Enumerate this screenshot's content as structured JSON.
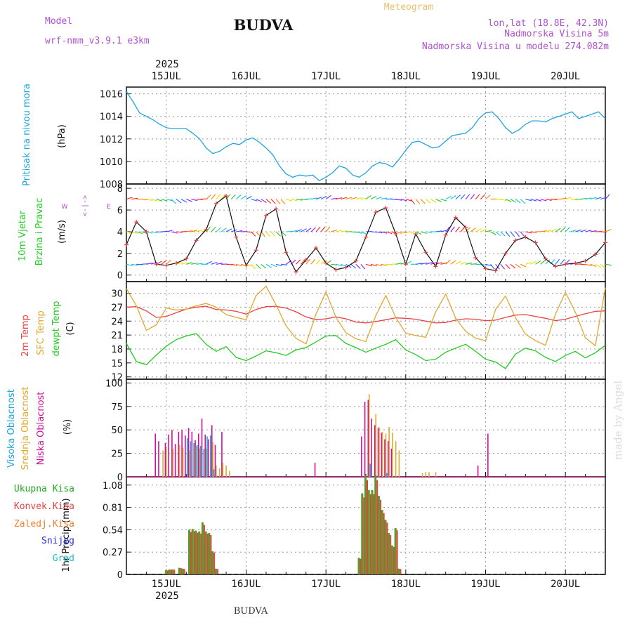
{
  "header": {
    "model_label": "Model",
    "model_name": "wrf-nmm_v3.9.1  e3km",
    "title": "BUDVA",
    "meteogram_label": "Meteogram",
    "lonlat": "lon,lat (18.8E, 42.3N)",
    "elevation": "Nadmorska Visina 5m",
    "model_elevation": "Nadmorska Visina u modelu 274.082m",
    "year_top": "2025",
    "year_bottom": "2025",
    "footer_station": "BUDVA",
    "watermark": "made by Angel"
  },
  "colors": {
    "pressure": "#1fa3e0",
    "temp": "#e84040",
    "sfc": "#e0a830",
    "dew": "#22cc22",
    "high": "#1fa3e0",
    "mid": "#e0a830",
    "low": "#cc1199",
    "total": "#22aa22",
    "conv": "#e84040",
    "frz": "#f08030",
    "snow": "#3030dd",
    "grad": "#20c0c0",
    "wind": "#111111",
    "header": "#b050d0",
    "meteo": "#e8c070"
  },
  "chart_data": [
    {
      "panel": "pressure",
      "type": "line",
      "title": "Pritisak na nivou mora",
      "ylabel": "(hPa)",
      "ylim": [
        1008,
        1016.6
      ],
      "yticks": [
        1008,
        1010,
        1012,
        1014,
        1016
      ],
      "xlim": [
        0,
        144
      ],
      "x": [
        0,
        2,
        4,
        6,
        8,
        10,
        12,
        14,
        16,
        18,
        20,
        22,
        24,
        26,
        28,
        30,
        32,
        34,
        36,
        38,
        40,
        42,
        44,
        46,
        48,
        50,
        52,
        54,
        56,
        58,
        60,
        62,
        64,
        66,
        68,
        70,
        72,
        74,
        76,
        78,
        80,
        82,
        84,
        86,
        88,
        90,
        92,
        94,
        96,
        98,
        100,
        102,
        104,
        106,
        108,
        110,
        112,
        114,
        116,
        118,
        120,
        122,
        124,
        126,
        128,
        130,
        132,
        134,
        136,
        138,
        140,
        142,
        144
      ],
      "values": [
        1016.2,
        1015.3,
        1014.3,
        1014,
        1013.7,
        1013.3,
        1013,
        1012.9,
        1012.9,
        1012.9,
        1012.5,
        1012,
        1011.2,
        1010.7,
        1010.9,
        1011.3,
        1011.6,
        1011.5,
        1011.9,
        1012.1,
        1011.7,
        1011.2,
        1010.6,
        1009.6,
        1008.9,
        1008.6,
        1008.8,
        1008.7,
        1008.8,
        1008.3,
        1008.6,
        1009,
        1009.6,
        1009.4,
        1008.8,
        1008.6,
        1009,
        1009.6,
        1009.9,
        1009.8,
        1009.5,
        1010.2,
        1011,
        1011.7,
        1011.8,
        1011.5,
        1011.2,
        1011.3,
        1011.8,
        1012.3,
        1012.4,
        1012.5,
        1013,
        1013.8,
        1014.3,
        1014.4,
        1013.8,
        1013,
        1012.5,
        1012.8,
        1013.3,
        1013.6,
        1013.6,
        1013.5,
        1013.8,
        1014,
        1014.2,
        1014.4,
        1013.8,
        1014,
        1014.2,
        1014.4,
        1013.8
      ]
    },
    {
      "panel": "wind",
      "type": "line",
      "title": "10m Vjetar Brzina i Pravac",
      "ylabel": "(m/s)",
      "compass": "<-|->",
      "west": "W",
      "east": "E",
      "ylim": [
        -0.6,
        8.4
      ],
      "yticks": [
        0,
        2,
        4,
        6,
        8
      ],
      "xlim": [
        0,
        144
      ],
      "x": [
        0,
        3,
        6,
        9,
        12,
        15,
        18,
        21,
        24,
        27,
        30,
        33,
        36,
        39,
        42,
        45,
        48,
        51,
        54,
        57,
        60,
        63,
        66,
        69,
        72,
        75,
        78,
        81,
        84,
        87,
        90,
        93,
        96,
        99,
        102,
        105,
        108,
        111,
        114,
        117,
        120,
        123,
        126,
        129,
        132,
        135,
        138,
        141,
        144
      ],
      "values": [
        2.8,
        4.9,
        4,
        1,
        0.9,
        1.1,
        1.5,
        3.2,
        4.2,
        6.6,
        7.3,
        3.5,
        0.9,
        2.3,
        5.5,
        6.1,
        2.1,
        0.3,
        1.4,
        2.5,
        1.1,
        0.5,
        0.7,
        1.3,
        3.5,
        5.8,
        6.2,
        3.8,
        1,
        3.8,
        2.1,
        0.8,
        3.7,
        5.3,
        4.4,
        1.6,
        0.6,
        0.4,
        2,
        3.2,
        3.5,
        3,
        1.5,
        0.8,
        1,
        1.1,
        1.3,
        1.9,
        3
      ]
    },
    {
      "panel": "temperature",
      "type": "line",
      "title_lines": [
        "2m Temp",
        "SFC Temp",
        "dewpt Temp"
      ],
      "ylabel": "(C)",
      "ylim": [
        11.5,
        32.5
      ],
      "yticks": [
        12,
        15,
        18,
        21,
        24,
        27,
        30
      ],
      "xlim": [
        0,
        144
      ],
      "x": [
        0,
        3,
        6,
        9,
        12,
        15,
        18,
        21,
        24,
        27,
        30,
        33,
        36,
        39,
        42,
        45,
        48,
        51,
        54,
        57,
        60,
        63,
        66,
        69,
        72,
        75,
        78,
        81,
        84,
        87,
        90,
        93,
        96,
        99,
        102,
        105,
        108,
        111,
        114,
        117,
        120,
        123,
        126,
        129,
        132,
        135,
        138,
        141,
        144
      ],
      "series": [
        {
          "name": "2m Temp",
          "values": [
            27,
            27.1,
            26.2,
            24.8,
            25,
            25.8,
            26.6,
            27,
            27.2,
            26.5,
            26.4,
            26.1,
            25.5,
            26.5,
            27.1,
            27.2,
            26.8,
            26,
            24.9,
            24.3,
            24.5,
            24.9,
            24.5,
            23.8,
            23.6,
            23.9,
            24.3,
            24.7,
            24.6,
            24.4,
            24,
            23.6,
            23.7,
            24.2,
            24.5,
            24.4,
            24.1,
            24.2,
            24.8,
            25.3,
            25.4,
            25,
            24.6,
            24.1,
            24.4,
            25,
            25.6,
            26.1,
            26.2
          ]
        },
        {
          "name": "SFC Temp",
          "values": [
            31,
            27.3,
            22,
            23.2,
            26.8,
            26.4,
            26.6,
            27.3,
            27.8,
            27,
            25.4,
            24.8,
            24.3,
            29.5,
            31.5,
            27.5,
            23,
            20.3,
            19.1,
            25.5,
            30.3,
            24.8,
            21.5,
            20.2,
            19.6,
            25.2,
            29.5,
            24.8,
            21.4,
            20.9,
            20.5,
            26,
            29.8,
            24.6,
            21.8,
            20.3,
            19.8,
            26.5,
            29.4,
            24.7,
            21.2,
            19.8,
            18.8,
            25.5,
            30.2,
            25.9,
            20.4,
            18.7,
            31.2
          ]
        },
        {
          "name": "dewpt Temp",
          "values": [
            19.2,
            15.3,
            14.6,
            16.7,
            18.6,
            20,
            20.8,
            21.3,
            19,
            17.5,
            18.5,
            16.2,
            15.5,
            16.5,
            17.6,
            17.2,
            16.6,
            17.8,
            18.3,
            19.5,
            20.8,
            20.9,
            19.2,
            18.3,
            17.3,
            18.2,
            19,
            20,
            17.8,
            16.8,
            15.5,
            15.8,
            17.3,
            18.2,
            19,
            17.5,
            15.8,
            15.2,
            13.8,
            16.9,
            18.2,
            17.6,
            16.2,
            15.3,
            16.6,
            17.5,
            16.1,
            17.2,
            18.8
          ]
        }
      ]
    },
    {
      "panel": "clouds",
      "type": "bar",
      "title_lines": [
        "Visoka Oblacnost",
        "Srednja Oblacnost",
        "Niska Oblacnost"
      ],
      "ylabel": "(%)",
      "ylim": [
        0,
        104
      ],
      "yticks": [
        0,
        25,
        50,
        75,
        100
      ],
      "xlim": [
        0,
        144
      ],
      "series": [
        {
          "name": "Niska Oblacnost",
          "points": [
            [
              9,
              46
            ],
            [
              10,
              38
            ],
            [
              12,
              36
            ],
            [
              13,
              45
            ],
            [
              14,
              50
            ],
            [
              15,
              35
            ],
            [
              16,
              48
            ],
            [
              17,
              50
            ],
            [
              18,
              44
            ],
            [
              19,
              52
            ],
            [
              20,
              48
            ],
            [
              21,
              39
            ],
            [
              22,
              46
            ],
            [
              23,
              62
            ],
            [
              24,
              45
            ],
            [
              25,
              40
            ],
            [
              26,
              55
            ],
            [
              27,
              34
            ],
            [
              29,
              48
            ],
            [
              57,
              15
            ],
            [
              71,
              43
            ],
            [
              72,
              80
            ],
            [
              73,
              82
            ],
            [
              74,
              62
            ],
            [
              75,
              55
            ],
            [
              76,
              52
            ],
            [
              77,
              47
            ],
            [
              78,
              40
            ],
            [
              79,
              38
            ],
            [
              80,
              30
            ],
            [
              106,
              12
            ],
            [
              109,
              46
            ]
          ]
        },
        {
          "name": "Srednja Oblacnost",
          "points": [
            [
              11,
              28
            ],
            [
              12,
              32
            ],
            [
              14,
              30
            ],
            [
              16,
              34
            ],
            [
              17,
              31
            ],
            [
              19,
              28
            ],
            [
              21,
              33
            ],
            [
              22,
              30
            ],
            [
              24,
              30
            ],
            [
              26,
              37
            ],
            [
              27,
              12
            ],
            [
              28,
              9
            ],
            [
              29,
              15
            ],
            [
              30,
              12
            ],
            [
              31,
              6
            ],
            [
              73,
              88
            ],
            [
              75,
              67
            ],
            [
              76,
              53
            ],
            [
              77,
              48
            ],
            [
              78,
              46
            ],
            [
              79,
              53
            ],
            [
              80,
              47
            ],
            [
              81,
              38
            ],
            [
              82,
              28
            ],
            [
              89,
              4
            ],
            [
              90,
              5
            ],
            [
              91,
              5
            ],
            [
              93,
              5
            ]
          ]
        },
        {
          "name": "Visoka Oblacnost",
          "points": [
            [
              18,
              41
            ],
            [
              19,
              38
            ],
            [
              20,
              36
            ],
            [
              21,
              34
            ],
            [
              22,
              33
            ],
            [
              23,
              30
            ],
            [
              24,
              43
            ],
            [
              25,
              44
            ],
            [
              26,
              8
            ],
            [
              73,
              14
            ],
            [
              78,
              4
            ]
          ]
        }
      ]
    },
    {
      "panel": "precip",
      "type": "bar",
      "title": "1hr Precip",
      "ylabel": "(mm)",
      "legend": [
        "Ukupna Kisa",
        "Konvek.Kisa",
        "Zaledj.Kisa",
        "Snijeg",
        "Grad"
      ],
      "ylim": [
        0,
        1.18
      ],
      "yticks": [
        "0",
        "0.27",
        "0.54",
        "0.81",
        "1.08"
      ],
      "ytick_values": [
        0,
        0.27,
        0.54,
        0.81,
        1.08
      ],
      "xlim": [
        0,
        144
      ],
      "points": [
        [
          12,
          0.05
        ],
        [
          13,
          0.06
        ],
        [
          14,
          0.06
        ],
        [
          16,
          0.08
        ],
        [
          17,
          0.07
        ],
        [
          19,
          0.54
        ],
        [
          20,
          0.55
        ],
        [
          21,
          0.53
        ],
        [
          22,
          0.52
        ],
        [
          23,
          0.63
        ],
        [
          24,
          0.52
        ],
        [
          25,
          0.5
        ],
        [
          26,
          0.28
        ],
        [
          27,
          0.07
        ],
        [
          70,
          0.2
        ],
        [
          71,
          0.98
        ],
        [
          72,
          1.2
        ],
        [
          73,
          1.02
        ],
        [
          74,
          1.02
        ],
        [
          75,
          1.2
        ],
        [
          76,
          0.95
        ],
        [
          77,
          0.78
        ],
        [
          78,
          0.66
        ],
        [
          79,
          0.5
        ],
        [
          80,
          0.35
        ],
        [
          81,
          0.56
        ],
        [
          82,
          0.07
        ]
      ]
    }
  ],
  "axis": {
    "dates": [
      "15JUL",
      "16JUL",
      "17JUL",
      "18JUL",
      "19JUL",
      "20JUL"
    ],
    "date_hours": [
      12,
      36,
      60,
      84,
      108,
      132
    ]
  }
}
